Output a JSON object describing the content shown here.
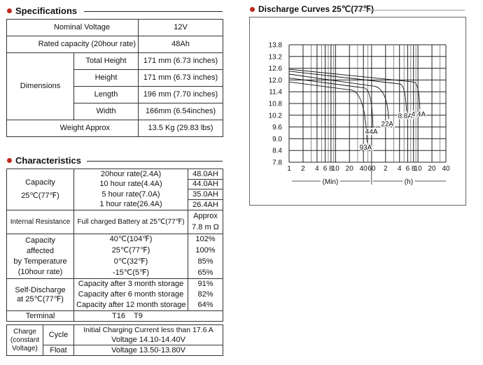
{
  "specs": {
    "title": "Specifications",
    "nominal_voltage_label": "Nominal Voltage",
    "nominal_voltage_value": "12V",
    "rated_capacity_label": "Rated capacity (20hour rate)",
    "rated_capacity_value": "48Ah",
    "dimensions_label": "Dimensions",
    "dims": [
      {
        "label": "Total Height",
        "value": "171 mm (6.73 inches)"
      },
      {
        "label": "Height",
        "value": "171 mm (6.73 inches)"
      },
      {
        "label": "Length",
        "value": "196 mm (7.70 inches)"
      },
      {
        "label": "Width",
        "value": "166mm (6.54inches)"
      }
    ],
    "weight_label": "Weight Approx",
    "weight_value": "13.5 Kg (29.83 lbs)"
  },
  "characteristics": {
    "title": "Characteristics",
    "capacity_label_1": "Capacity",
    "capacity_label_2": "25℃(77℉)",
    "capacity_rows": [
      {
        "label": "20hour rate(2.4A)",
        "value": "48.0AH"
      },
      {
        "label": "10 hour rate(4.4A)",
        "value": "44.0AH"
      },
      {
        "label": "5 hour rate(7.0A)",
        "value": "35.0AH"
      },
      {
        "label": "1 hour rate(26.4A)",
        "value": "26.4AH"
      }
    ],
    "ir_label": "Internal Resistance",
    "ir_condition": "Full charged Battery at 25℃(77℉)",
    "ir_value_1": "Approx",
    "ir_value_2": "7.8 m Ω",
    "temp_label_1": "Capacity",
    "temp_label_2": "affected",
    "temp_label_3": "by Temperature",
    "temp_label_4": "(10hour rate)",
    "temp_rows": [
      {
        "label": "40℃(104℉)",
        "value": "102%"
      },
      {
        "label": "25℃(77℉)",
        "value": "100%"
      },
      {
        "label": "0℃(32℉)",
        "value": "85%"
      },
      {
        "label": "-15℃(5℉)",
        "value": "65%"
      }
    ],
    "sd_label_1": "Self-Discharge",
    "sd_label_2": "at 25℃(77℉)",
    "sd_rows": [
      {
        "label": "Capacity after 3 month storage",
        "value": "91%"
      },
      {
        "label": "Capacity after 6 month storage",
        "value": "82%"
      },
      {
        "label": "Capacity after 12 month storage",
        "value": "64%"
      }
    ],
    "terminal_label": "Terminal",
    "terminal_value": "T16    T9",
    "charge_label_1": "Charge",
    "charge_label_2": "(constant",
    "charge_label_3": "Voltage)",
    "cycle_label": "Cycle",
    "cycle_value_1": "Initial Charging Current less than 17.6 A",
    "cycle_value_2": "Voltage 14.10-14.40V",
    "float_label": "Float",
    "float_value": "Voltage 13.50-13.80V"
  },
  "chart_data": {
    "type": "line",
    "title": "Discharge Curves 25℃(77℉)",
    "ylabel": "",
    "ylim": [
      7.8,
      13.8
    ],
    "yticks": [
      "13.8",
      "13.2",
      "12.6",
      "12.0",
      "11.4",
      "10.8",
      "10.2",
      "9.6",
      "9.0",
      "8.4",
      "7.8"
    ],
    "xtick_labels": [
      "1",
      "2",
      "4",
      "6",
      "8",
      "10",
      "20",
      "40",
      "60",
      "2",
      "4",
      "6",
      "8",
      "10",
      "20",
      "40"
    ],
    "x_unit_labels": [
      "(Min)",
      "(h)"
    ],
    "series": [
      {
        "name": "93A",
        "x_min": [
          0,
          20,
          40,
          48
        ],
        "y": [
          11.9,
          11.5,
          10.2,
          8.8
        ]
      },
      {
        "name": "44A",
        "x_min": [
          0,
          40,
          60,
          64
        ],
        "y": [
          12.1,
          11.6,
          10.6,
          9.6
        ]
      },
      {
        "name": "22A",
        "x_min": [
          0,
          60,
          120,
          140
        ],
        "y": [
          12.3,
          11.7,
          10.7,
          10.0
        ]
      },
      {
        "name": "8.8A",
        "x_min": [
          0,
          240,
          300,
          340
        ],
        "y": [
          12.45,
          11.8,
          11.0,
          10.4
        ]
      },
      {
        "name": "4.4A",
        "x_min": [
          0,
          480,
          600,
          660
        ],
        "y": [
          12.55,
          11.9,
          11.1,
          10.5
        ]
      }
    ]
  }
}
